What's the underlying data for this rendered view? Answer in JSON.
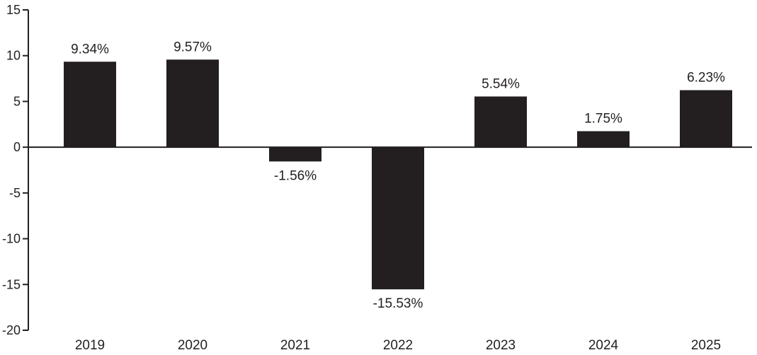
{
  "chart_data": {
    "type": "bar",
    "categories": [
      "2019",
      "2020",
      "2021",
      "2022",
      "2023",
      "2024",
      "2025"
    ],
    "values": [
      9.34,
      9.57,
      -1.56,
      -15.53,
      5.54,
      1.75,
      6.23
    ],
    "data_labels": [
      "9.34%",
      "9.57%",
      "-1.56%",
      "-15.53%",
      "5.54%",
      "1.75%",
      "6.23%"
    ],
    "ylim": [
      -20,
      15
    ],
    "yticks": [
      15,
      10,
      5,
      0,
      -5,
      -10,
      -15,
      -20
    ],
    "ytick_labels": [
      "15",
      "10",
      "5",
      "0",
      "-5",
      "-10",
      "-15",
      "-20"
    ],
    "bar_color": "#231f20",
    "grid": false,
    "legend": "none"
  }
}
